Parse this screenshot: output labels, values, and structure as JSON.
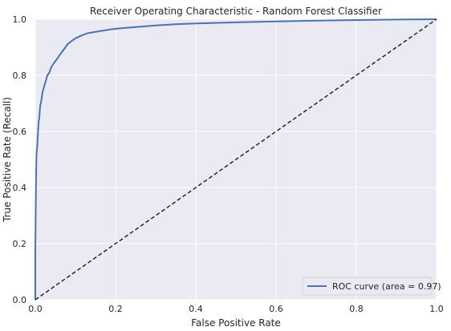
{
  "chart_data": {
    "type": "line",
    "title": "Receiver Operating Characteristic - Random Forest Classifier",
    "xlabel": "False Positive Rate",
    "ylabel": "True Positive Rate (Recall)",
    "xlim": [
      0.0,
      1.0
    ],
    "ylim": [
      0.0,
      1.0
    ],
    "xticks": [
      0.0,
      0.2,
      0.4,
      0.6,
      0.8,
      1.0
    ],
    "yticks": [
      0.0,
      0.2,
      0.4,
      0.6,
      0.8,
      1.0
    ],
    "xtick_labels": [
      "0.0",
      "0.2",
      "0.4",
      "0.6",
      "0.8",
      "1.0"
    ],
    "ytick_labels": [
      "0.0",
      "0.2",
      "0.4",
      "0.6",
      "0.8",
      "1.0"
    ],
    "grid": true,
    "legend_position": "lower-right",
    "series": [
      {
        "name": "ROC curve (area = 0.97)",
        "color": "#4c72b0",
        "style": "solid",
        "x": [
          0.0,
          0.0,
          0.002,
          0.003,
          0.005,
          0.006,
          0.008,
          0.01,
          0.012,
          0.015,
          0.018,
          0.022,
          0.026,
          0.03,
          0.035,
          0.04,
          0.047,
          0.055,
          0.062,
          0.07,
          0.08,
          0.09,
          0.1,
          0.115,
          0.13,
          0.15,
          0.18,
          0.2,
          0.25,
          0.3,
          0.35,
          0.4,
          0.5,
          0.6,
          0.7,
          0.8,
          0.9,
          1.0
        ],
        "y": [
          0.0,
          0.17,
          0.45,
          0.52,
          0.55,
          0.58,
          0.63,
          0.65,
          0.69,
          0.71,
          0.74,
          0.76,
          0.78,
          0.8,
          0.81,
          0.83,
          0.845,
          0.86,
          0.875,
          0.89,
          0.91,
          0.922,
          0.932,
          0.942,
          0.95,
          0.955,
          0.962,
          0.966,
          0.972,
          0.978,
          0.982,
          0.985,
          0.989,
          0.992,
          0.995,
          0.997,
          0.999,
          1.0
        ]
      },
      {
        "name": "",
        "color": "#262626",
        "style": "dashed",
        "x": [
          0.0,
          1.0
        ],
        "y": [
          0.0,
          1.0
        ]
      }
    ],
    "colors": {
      "plot_background": "#eaeaf2",
      "grid": "#ffffff",
      "roc_line": "#4c72b0",
      "diagonal": "#262626",
      "text": "#262626"
    }
  }
}
